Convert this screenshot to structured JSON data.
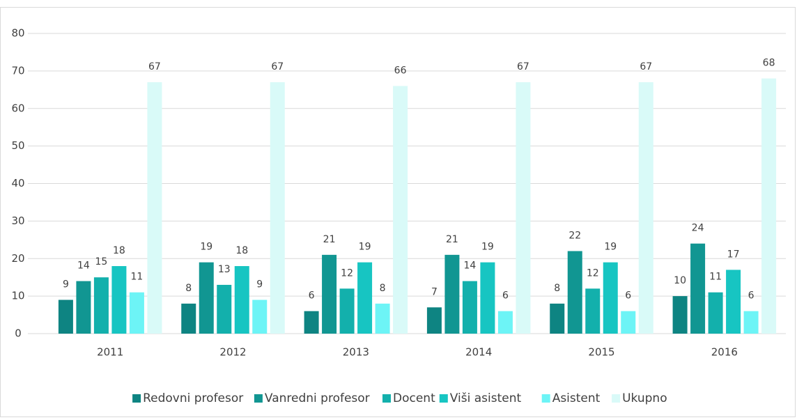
{
  "chart_data": {
    "type": "bar",
    "categories": [
      "2011",
      "2012",
      "2013",
      "2014",
      "2015",
      "2016"
    ],
    "series": [
      {
        "name": "Redovni profesor",
        "color": "#0e8482",
        "values": [
          9,
          8,
          6,
          7,
          8,
          10
        ]
      },
      {
        "name": "Vanredni profesor",
        "color": "#119692",
        "values": [
          14,
          19,
          21,
          21,
          22,
          24
        ]
      },
      {
        "name": "Docent",
        "color": "#13b0ac",
        "values": [
          15,
          13,
          12,
          14,
          12,
          11
        ]
      },
      {
        "name": "Viši asistent",
        "color": "#17c5c2",
        "values": [
          18,
          18,
          19,
          19,
          19,
          17
        ]
      },
      {
        "name": "Asistent",
        "color": "#6df4f6",
        "values": [
          11,
          9,
          8,
          6,
          6,
          6
        ]
      },
      {
        "name": "Ukupno",
        "color": "#d9faf8",
        "values": [
          67,
          67,
          66,
          67,
          67,
          68
        ]
      }
    ],
    "ylim": [
      0,
      80
    ],
    "yticks": [
      0,
      10,
      20,
      30,
      40,
      50,
      60,
      70,
      80
    ],
    "grid": true,
    "legend": "bottom"
  }
}
